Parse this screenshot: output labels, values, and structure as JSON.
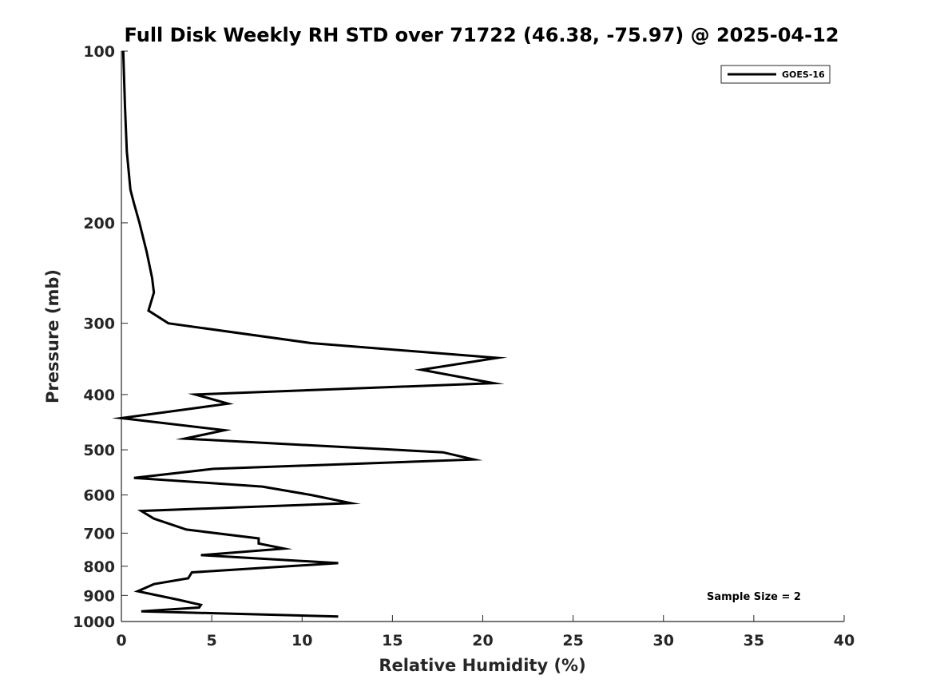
{
  "chart_data": {
    "type": "line",
    "title": "Full Disk Weekly RH STD over 71722 (46.38, -75.97) @ 2025-04-12",
    "xlabel": "Relative Humidity (%)",
    "ylabel": "Pressure (mb)",
    "xlim": [
      0,
      40
    ],
    "ylim": [
      100,
      1000
    ],
    "yscale": "log",
    "y_reversed": true,
    "x_ticks": [
      0,
      5,
      10,
      15,
      20,
      25,
      30,
      35,
      40
    ],
    "x_tick_labels": [
      "0",
      "5",
      "10",
      "15",
      "20",
      "25",
      "30",
      "35",
      "40"
    ],
    "y_ticks": [
      100,
      200,
      300,
      400,
      500,
      600,
      700,
      800,
      900,
      1000
    ],
    "y_tick_labels": [
      "100",
      "200",
      "300",
      "400",
      "500",
      "600",
      "700",
      "800",
      "900",
      "1000"
    ],
    "legend": {
      "entries": [
        "GOES-16"
      ],
      "position": "top-right"
    },
    "annotation": "Sample Size = 2",
    "series": [
      {
        "name": "GOES-16",
        "color": "#000000",
        "points": [
          [
            0.1,
            100
          ],
          [
            0.2,
            125
          ],
          [
            0.3,
            150
          ],
          [
            0.5,
            175
          ],
          [
            0.7,
            185
          ],
          [
            1.0,
            200
          ],
          [
            1.4,
            225
          ],
          [
            1.7,
            250
          ],
          [
            1.8,
            265
          ],
          [
            1.5,
            285
          ],
          [
            2.6,
            300
          ],
          [
            10.5,
            325
          ],
          [
            20.8,
            345
          ],
          [
            16.6,
            362
          ],
          [
            20.6,
            382
          ],
          [
            4.1,
            400
          ],
          [
            5.9,
            415
          ],
          [
            0.0,
            440
          ],
          [
            5.7,
            462
          ],
          [
            3.5,
            478
          ],
          [
            17.8,
            505
          ],
          [
            19.5,
            520
          ],
          [
            5.1,
            540
          ],
          [
            0.7,
            560
          ],
          [
            7.8,
            580
          ],
          [
            10.5,
            600
          ],
          [
            12.7,
            620
          ],
          [
            1.1,
            640
          ],
          [
            1.8,
            660
          ],
          [
            3.6,
            690
          ],
          [
            7.6,
            715
          ],
          [
            7.6,
            730
          ],
          [
            9.0,
            745
          ],
          [
            4.4,
            765
          ],
          [
            12.0,
            790
          ],
          [
            3.9,
            820
          ],
          [
            3.7,
            840
          ],
          [
            1.8,
            860
          ],
          [
            0.9,
            885
          ],
          [
            3.1,
            915
          ],
          [
            4.4,
            935
          ],
          [
            4.3,
            945
          ],
          [
            1.1,
            960
          ],
          [
            12.0,
            980
          ]
        ]
      }
    ]
  }
}
